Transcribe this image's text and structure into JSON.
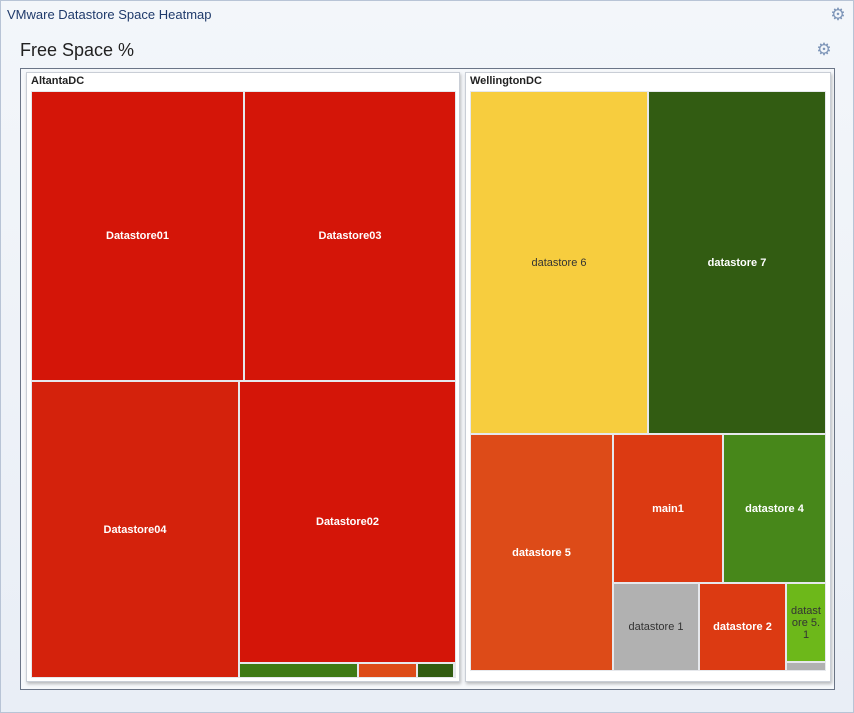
{
  "window": {
    "title": "VMware Datastore Space Heatmap",
    "settings_icon": "gear-icon"
  },
  "panel": {
    "title": "Free Space %",
    "settings_icon": "gear-icon"
  },
  "colors": {
    "deep_red": "#d41508",
    "red": "#d4220c",
    "orange_red": "#dc3a12",
    "orange": "#dd4b18",
    "yellow": "#f7cd3e",
    "dark_green": "#325c12",
    "green": "#47871a",
    "light_green": "#6db81a",
    "gray": "#b1b1b1"
  },
  "groups": [
    {
      "label": "AltantaDC",
      "tiles": [
        {
          "label": "Datastore01",
          "color": "#d41508"
        },
        {
          "label": "Datastore03",
          "color": "#d41508"
        },
        {
          "label": "Datastore04",
          "color": "#d4220c"
        },
        {
          "label": "Datastore02",
          "color": "#d41508"
        },
        {
          "label": "",
          "color": "#3f7a14"
        },
        {
          "label": "",
          "color": "#dd4b18"
        },
        {
          "label": "",
          "color": "#325c12"
        },
        {
          "label": "",
          "color": "#b1b1b1"
        }
      ]
    },
    {
      "label": "WellingtonDC",
      "tiles": [
        {
          "label": "datastore 6",
          "color": "#f7cd3e"
        },
        {
          "label": "datastore 7",
          "color": "#325c12"
        },
        {
          "label": "datastore 5",
          "color": "#dd4b18"
        },
        {
          "label": "main1",
          "color": "#dc3a12"
        },
        {
          "label": "datastore 4",
          "color": "#47871a"
        },
        {
          "label": "datastore 1",
          "color": "#b1b1b1"
        },
        {
          "label": "datastore 2",
          "color": "#dc3a12"
        },
        {
          "label": "datastore 5.1",
          "color": "#6db81a"
        },
        {
          "label": "",
          "color": "#b1b1b1"
        }
      ]
    }
  ]
}
